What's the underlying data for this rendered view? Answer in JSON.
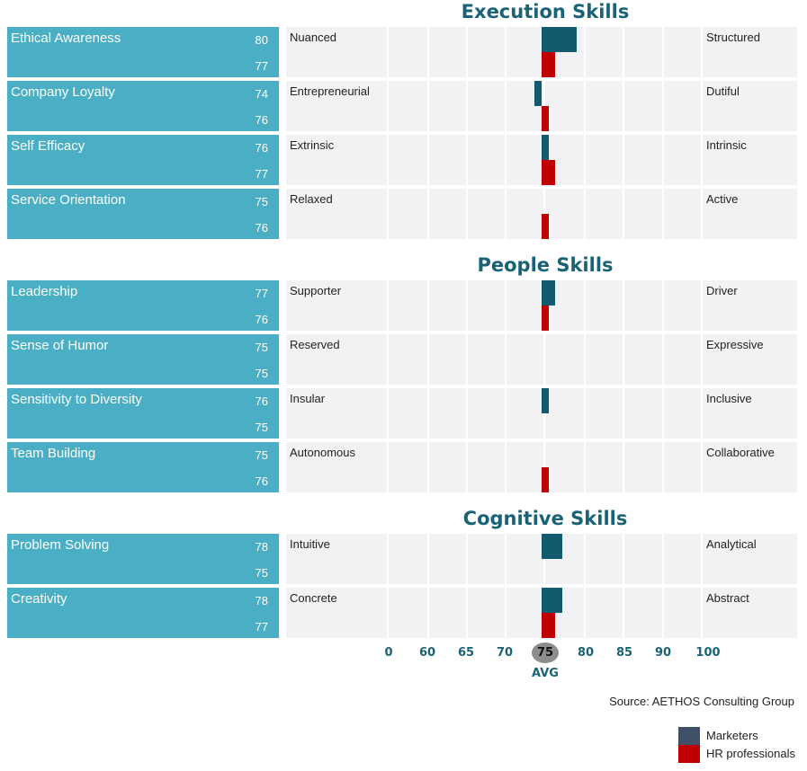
{
  "chart_data": {
    "type": "bar",
    "orientation": "horizontal",
    "baseline": 75,
    "axis": {
      "ticks": [
        0,
        60,
        65,
        70,
        75,
        80,
        85,
        90,
        100
      ],
      "avg_value": 75,
      "avg_label": "AVG"
    },
    "series": [
      {
        "name": "Marketers",
        "color": "#125b6e"
      },
      {
        "name": "HR professionals",
        "color": "#c00000"
      }
    ],
    "sections": [
      {
        "title": "Execution Skills",
        "rows": [
          {
            "skill": "Ethical Awareness",
            "left_term": "Nuanced",
            "right_term": "Structured",
            "marketers": 80,
            "hr": 77
          },
          {
            "skill": "Company Loyalty",
            "left_term": "Entrepreneurial",
            "right_term": "Dutiful",
            "marketers": 74,
            "hr": 76
          },
          {
            "skill": "Self Efficacy",
            "left_term": "Extrinsic",
            "right_term": "Intrinsic",
            "marketers": 76,
            "hr": 77
          },
          {
            "skill": "Service Orientation",
            "left_term": "Relaxed",
            "right_term": "Active",
            "marketers": 75,
            "hr": 76
          }
        ]
      },
      {
        "title": "People Skills",
        "rows": [
          {
            "skill": "Leadership",
            "left_term": "Supporter",
            "right_term": "Driver",
            "marketers": 77,
            "hr": 76
          },
          {
            "skill": "Sense of Humor",
            "left_term": "Reserved",
            "right_term": "Expressive",
            "marketers": 75,
            "hr": 75
          },
          {
            "skill": "Sensitivity to Diversity",
            "left_term": "Insular",
            "right_term": "Inclusive",
            "marketers": 76,
            "hr": 75
          },
          {
            "skill": "Team Building",
            "left_term": "Autonomous",
            "right_term": "Collaborative",
            "marketers": 75,
            "hr": 76
          }
        ]
      },
      {
        "title": "Cognitive Skills",
        "rows": [
          {
            "skill": "Problem Solving",
            "left_term": "Intuitive",
            "right_term": "Analytical",
            "marketers": 78,
            "hr": 75
          },
          {
            "skill": "Creativity",
            "left_term": "Concrete",
            "right_term": "Abstract",
            "marketers": 78,
            "hr": 77
          }
        ]
      }
    ],
    "source": "Source: AETHOS Consulting Group",
    "legend": {
      "placement": "bottom-right",
      "items": [
        {
          "label": "Marketers",
          "color": "#3f5068"
        },
        {
          "label": "HR professionals",
          "color": "#c00000"
        }
      ]
    }
  }
}
